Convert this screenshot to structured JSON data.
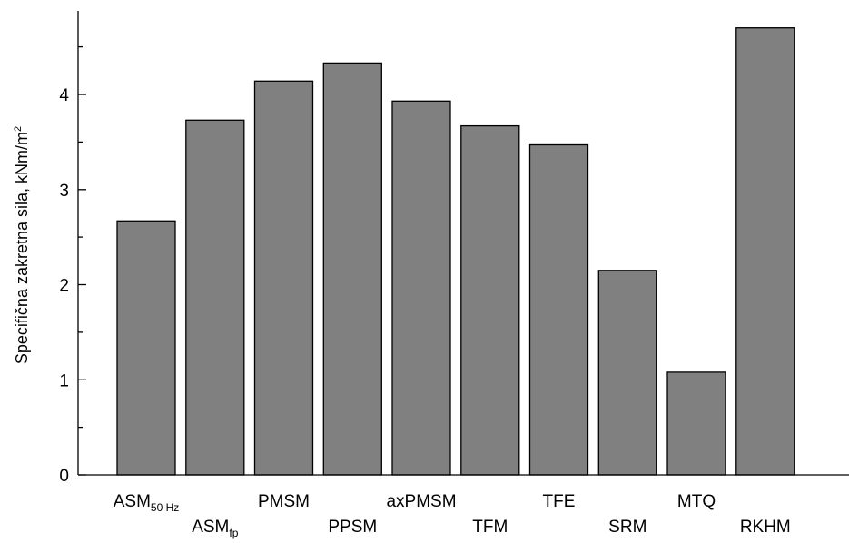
{
  "chart_data": {
    "type": "bar",
    "categories": [
      "ASM",
      "ASM",
      "PMSM",
      "PPSM",
      "axPMSM",
      "TFM",
      "TFE",
      "SRM",
      "MTQ",
      "RKHM"
    ],
    "category_subscripts": [
      "50 Hz",
      "fp",
      "",
      "",
      "",
      "",
      "",
      "",
      "",
      ""
    ],
    "values": [
      2.67,
      3.73,
      4.14,
      4.33,
      3.93,
      3.67,
      3.47,
      2.15,
      1.08,
      4.7
    ],
    "ylabel": {
      "main": "Specifična zakretna sila, kNm/m",
      "superscript": "2"
    },
    "ylim": [
      0,
      4.9
    ],
    "yticks": [
      "0",
      "1",
      "2",
      "3",
      "4"
    ],
    "bar_color": "#808080",
    "grid": false,
    "legend": "none"
  }
}
